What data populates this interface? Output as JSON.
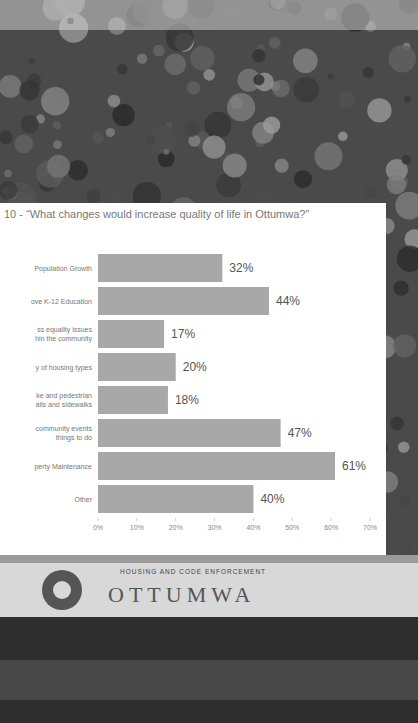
{
  "chart_data": {
    "type": "bar",
    "orientation": "horizontal",
    "title": "10 - “What changes would increase quality of life in Ottumwa?”",
    "categories": [
      "Population Growth",
      "ove K-12 Education",
      "ss equality issues hin the community",
      "y of housing types",
      "ke and pedestrian ails and sidewalks",
      "community events things to do",
      "perty Maintenance",
      "Other"
    ],
    "values": [
      32,
      44,
      17,
      20,
      18,
      47,
      61,
      40
    ],
    "value_labels": [
      "32%",
      "44%",
      "17%",
      "20%",
      "18%",
      "47%",
      "61%",
      "40%"
    ],
    "color": "#a8a8a8",
    "xlim": [
      0,
      70
    ],
    "xticks": [
      {
        "value": 0,
        "label": "0%"
      },
      {
        "value": 10,
        "label": "10%"
      },
      {
        "value": 20,
        "label": "20%"
      },
      {
        "value": 30,
        "label": "30%"
      },
      {
        "value": 40,
        "label": "40%"
      },
      {
        "value": 50,
        "label": "50%"
      },
      {
        "value": 60,
        "label": "60%"
      },
      {
        "value": 70,
        "label": "70%"
      }
    ],
    "grid": false,
    "data_labels": true
  },
  "background_sign": {
    "heading": "HOUSING AND CODE ENFORCEMENT",
    "name": "OTTUMWA"
  }
}
